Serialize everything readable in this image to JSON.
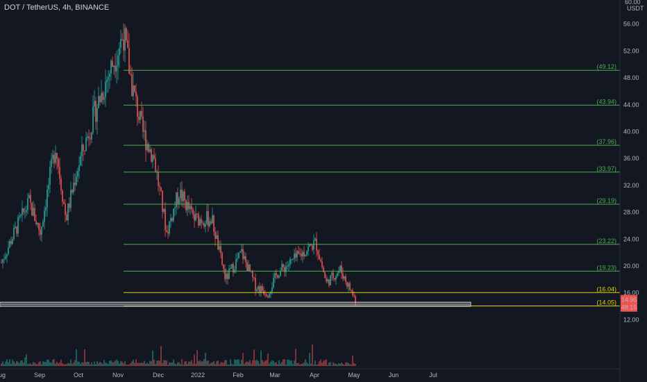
{
  "header": {
    "title": "DOT / TetherUS, 4h, BINANCE"
  },
  "axis": {
    "currency": "USDT"
  },
  "colors": {
    "background": "#131722",
    "grid": "#1e2230",
    "up": "#26a69a",
    "down": "#ef5350",
    "level_green": "#4caf50",
    "level_yellow": "#e6d200",
    "price_tag": "#ef5350",
    "zone_fill": "#c8c8c8"
  },
  "price_tag": {
    "value": "14.96",
    "countdown": "48:15"
  },
  "chart_data": {
    "type": "candlestick",
    "title": "DOT / TetherUS, 4h, BINANCE",
    "ylabel": "USDT",
    "ylim": [
      9.5,
      60
    ],
    "y_ticks": [
      "12.00",
      "16.00",
      "20.00",
      "24.00",
      "28.00",
      "32.00",
      "36.00",
      "40.00",
      "44.00",
      "48.00",
      "52.00",
      "56.00",
      "60.00"
    ],
    "x_ticks": [
      "Aug",
      "Sep",
      "Oct",
      "Nov",
      "Dec",
      "2022",
      "Feb",
      "Mar",
      "Apr",
      "May",
      "Jun",
      "Jul"
    ],
    "grid": false,
    "price_path": [
      {
        "date": "Aug",
        "price": 20.5
      },
      {
        "date": "Aug-mid",
        "price": 26
      },
      {
        "date": "Sep-early",
        "price": 29.5
      },
      {
        "date": "Sep-mid",
        "price": 25
      },
      {
        "date": "Sep-late",
        "price": 38
      },
      {
        "date": "Oct-early",
        "price": 27
      },
      {
        "date": "Oct-mid",
        "price": 34
      },
      {
        "date": "Oct-late",
        "price": 44
      },
      {
        "date": "Nov-early",
        "price": 54.5
      },
      {
        "date": "Nov-mid",
        "price": 47
      },
      {
        "date": "Nov-late",
        "price": 40
      },
      {
        "date": "Dec-early",
        "price": 36
      },
      {
        "date": "Dec-mid",
        "price": 25
      },
      {
        "date": "Dec-late",
        "price": 31
      },
      {
        "date": "2022",
        "price": 27
      },
      {
        "date": "Jan-mid",
        "price": 27
      },
      {
        "date": "Jan-late",
        "price": 18
      },
      {
        "date": "Feb-early",
        "price": 22
      },
      {
        "date": "Feb-mid",
        "price": 17
      },
      {
        "date": "Mar-early",
        "price": 16
      },
      {
        "date": "Mar-mid",
        "price": 19
      },
      {
        "date": "Apr-early",
        "price": 23.5
      },
      {
        "date": "Apr-mid",
        "price": 17.5
      },
      {
        "date": "Apr-late",
        "price": 19.5
      },
      {
        "date": "May",
        "price": 14.96
      }
    ],
    "levels": [
      {
        "value": 49.12,
        "label": "(49.12)",
        "color": "green"
      },
      {
        "value": 43.94,
        "label": "(43.94)",
        "color": "green"
      },
      {
        "value": 37.96,
        "label": "(37.96)",
        "color": "green"
      },
      {
        "value": 33.97,
        "label": "(33.97)",
        "color": "green"
      },
      {
        "value": 29.19,
        "label": "(29.19)",
        "color": "green"
      },
      {
        "value": 23.22,
        "label": "(23.22)",
        "color": "green"
      },
      {
        "value": 19.23,
        "label": "(19.23)",
        "color": "green"
      },
      {
        "value": 16.04,
        "label": "(16.04)",
        "color": "yellow"
      },
      {
        "value": 14.05,
        "label": "(14.05)",
        "color": "yellow"
      }
    ],
    "support_zone": {
      "low": 14.0,
      "high": 14.6
    },
    "last_price": 14.96
  }
}
